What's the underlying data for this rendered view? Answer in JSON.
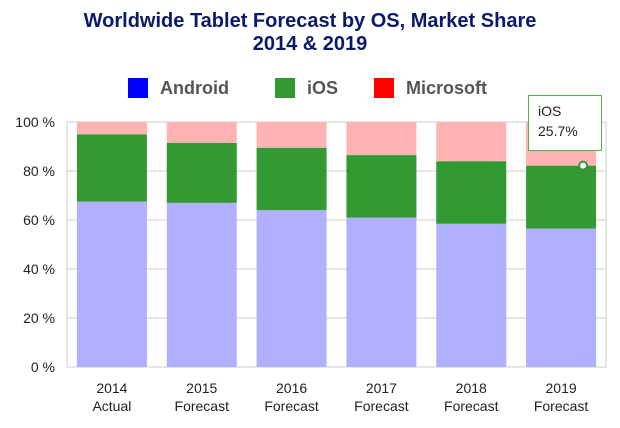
{
  "chart_data": {
    "type": "bar",
    "stacked": true,
    "title": [
      "Worldwide Tablet Forecast by OS, Market Share",
      "2014 & 2019"
    ],
    "categories": [
      [
        "2014",
        "Actual"
      ],
      [
        "2015",
        "Forecast"
      ],
      [
        "2016",
        "Forecast"
      ],
      [
        "2017",
        "Forecast"
      ],
      [
        "2018",
        "Forecast"
      ],
      [
        "2019",
        "Forecast"
      ]
    ],
    "series": [
      {
        "name": "Android",
        "legend_color": "#0000ff",
        "bar_color": "#b0b0ff",
        "values": [
          67.5,
          67,
          64,
          61,
          58.5,
          56.5
        ]
      },
      {
        "name": "iOS",
        "legend_color": "#339933",
        "bar_color": "#339933",
        "values": [
          27.5,
          24.5,
          25.5,
          25.5,
          25.5,
          25.7
        ]
      },
      {
        "name": "Microsoft",
        "legend_color": "#ff0000",
        "bar_color": "#ffb3b3",
        "values": [
          5,
          8.5,
          10.5,
          13.5,
          16,
          17.8
        ]
      }
    ],
    "ylim": [
      0,
      100
    ],
    "yticks": [
      "0 %",
      "20 %",
      "40 %",
      "60 %",
      "80 %",
      "100 %"
    ],
    "ytick_values": [
      0,
      20,
      40,
      60,
      80,
      100
    ],
    "legend_position": "top",
    "grid": true,
    "tooltip": {
      "series": "iOS",
      "value_text": "25.7%",
      "category_index": 5,
      "marker_value": 82.2
    }
  }
}
